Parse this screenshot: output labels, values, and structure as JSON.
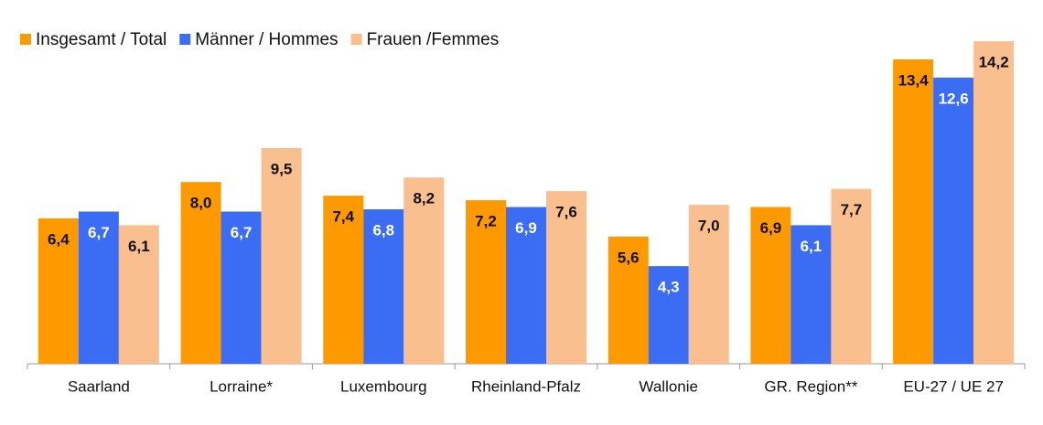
{
  "chart_data": {
    "type": "bar",
    "categories": [
      "Saarland",
      "Lorraine*",
      "Luxembourg",
      "Rheinland-Pfalz",
      "Wallonie",
      "GR. Region**",
      "EU-27 / UE 27"
    ],
    "series": [
      {
        "name": "Insgesamt / Total",
        "color": "#ff9900",
        "values": [
          6.4,
          8.0,
          7.4,
          7.2,
          5.6,
          6.9,
          13.4
        ],
        "value_labels": [
          "6,4",
          "8,0",
          "7,4",
          "7,2",
          "5,6",
          "6,9",
          "13,4"
        ]
      },
      {
        "name": "Männer / Hommes",
        "color": "#3a6cf4",
        "values": [
          6.7,
          6.7,
          6.8,
          6.9,
          4.3,
          6.1,
          12.6
        ],
        "value_labels": [
          "6,7",
          "6,7",
          "6,8",
          "6,9",
          "4,3",
          "6,1",
          "12,6"
        ]
      },
      {
        "name": "Frauen /Femmes",
        "color": "#f9bf8f",
        "values": [
          6.1,
          9.5,
          8.2,
          7.6,
          7.0,
          7.7,
          14.2
        ],
        "value_labels": [
          "6,1",
          "9,5",
          "8,2",
          "7,6",
          "7,0",
          "7,7",
          "14,2"
        ]
      }
    ],
    "legend": "top-left"
  }
}
